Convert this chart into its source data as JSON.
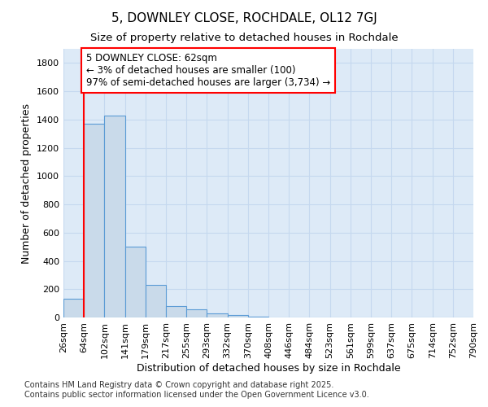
{
  "title": "5, DOWNLEY CLOSE, ROCHDALE, OL12 7GJ",
  "subtitle": "Size of property relative to detached houses in Rochdale",
  "xlabel": "Distribution of detached houses by size in Rochdale",
  "ylabel": "Number of detached properties",
  "bin_labels": [
    "26sqm",
    "64sqm",
    "102sqm",
    "141sqm",
    "179sqm",
    "217sqm",
    "255sqm",
    "293sqm",
    "332sqm",
    "370sqm",
    "408sqm",
    "446sqm",
    "484sqm",
    "523sqm",
    "561sqm",
    "599sqm",
    "637sqm",
    "675sqm",
    "714sqm",
    "752sqm",
    "790sqm"
  ],
  "bar_heights": [
    130,
    1370,
    1430,
    500,
    230,
    82,
    55,
    28,
    18,
    5,
    0,
    0,
    0,
    0,
    0,
    0,
    0,
    0,
    0,
    0
  ],
  "bar_color": "#c9daea",
  "bar_edge_color": "#5b9bd5",
  "red_line_x": 1,
  "annotation_text": "5 DOWNLEY CLOSE: 62sqm\n← 3% of detached houses are smaller (100)\n97% of semi-detached houses are larger (3,734) →",
  "annotation_box_color": "white",
  "annotation_edge_color": "red",
  "ylim": [
    0,
    1900
  ],
  "yticks": [
    0,
    200,
    400,
    600,
    800,
    1000,
    1200,
    1400,
    1600,
    1800
  ],
  "background_color": "#ddeaf7",
  "grid_color": "#c5d8ef",
  "footer_line1": "Contains HM Land Registry data © Crown copyright and database right 2025.",
  "footer_line2": "Contains public sector information licensed under the Open Government Licence v3.0.",
  "title_fontsize": 11,
  "subtitle_fontsize": 9.5,
  "axis_label_fontsize": 9,
  "tick_fontsize": 8,
  "annotation_fontsize": 8.5,
  "footer_fontsize": 7
}
